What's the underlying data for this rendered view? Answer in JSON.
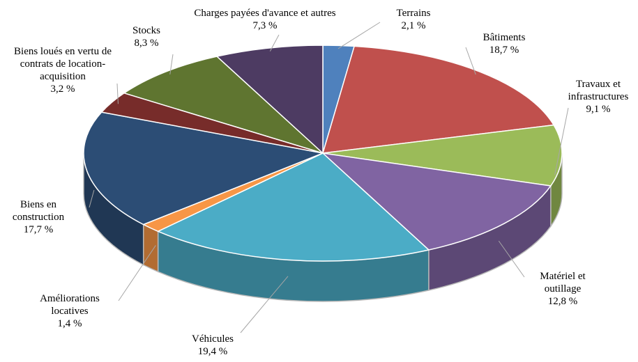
{
  "chart_data": {
    "type": "pie3d",
    "categories": [
      "Terrains",
      "Bâtiments",
      "Travaux et infrastructures",
      "Matériel et outillage",
      "Véhicules",
      "Améliorations locatives",
      "Biens en construction",
      "Biens loués en vertu de contrats de location-acquisition",
      "Stocks",
      "Charges payées d'avance et autres"
    ],
    "values": [
      2.1,
      18.7,
      9.1,
      12.8,
      19.4,
      1.4,
      17.7,
      3.2,
      8.3,
      7.3
    ],
    "value_labels": [
      "2,1 %",
      "18,7 %",
      "9,1 %",
      "12,8 %",
      "19,4 %",
      "1,4 %",
      "17,7 %",
      "3,2 %",
      "8,3 %",
      "7,3 %"
    ],
    "colors": [
      "#4f81bd",
      "#c0504d",
      "#9bbb59",
      "#8064a2",
      "#4bacc6",
      "#f79646",
      "#2c4d75",
      "#772c2a",
      "#5f7530",
      "#4d3b62"
    ]
  }
}
